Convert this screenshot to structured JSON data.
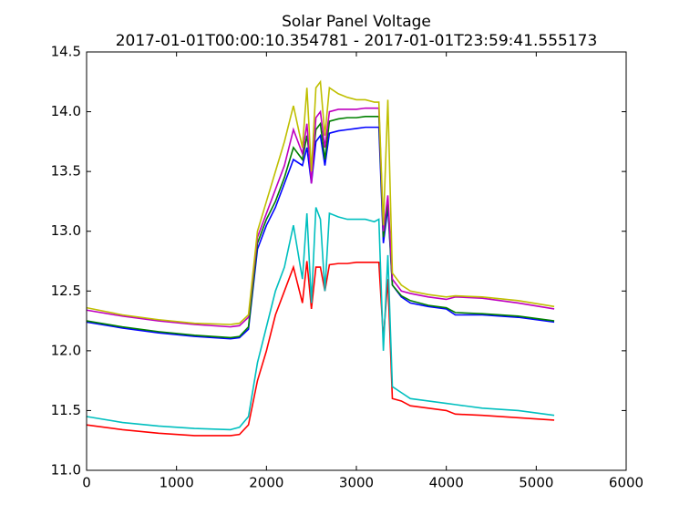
{
  "chart_data": {
    "type": "line",
    "title": "Solar Panel Voltage",
    "subtitle": "2017-01-01T00:00:10.354781 - 2017-01-01T23:59:41.555173",
    "x": [
      0,
      400,
      800,
      1200,
      1600,
      1700,
      1800,
      1900,
      2000,
      2100,
      2200,
      2300,
      2400,
      2450,
      2500,
      2550,
      2600,
      2650,
      2700,
      2800,
      2900,
      3000,
      3100,
      3200,
      3250,
      3300,
      3350,
      3400,
      3500,
      3600,
      3800,
      4000,
      4100,
      4400,
      4800,
      5200
    ],
    "series": [
      {
        "color": "#0000ff",
        "values": [
          12.24,
          12.19,
          12.15,
          12.12,
          12.1,
          12.11,
          12.18,
          12.85,
          13.05,
          13.2,
          13.4,
          13.6,
          13.55,
          13.7,
          13.4,
          13.75,
          13.8,
          13.55,
          13.82,
          13.84,
          13.85,
          13.86,
          13.87,
          13.87,
          13.87,
          12.9,
          13.2,
          12.55,
          12.45,
          12.4,
          12.37,
          12.35,
          12.3,
          12.3,
          12.28,
          12.24
        ]
      },
      {
        "color": "#008000",
        "values": [
          12.25,
          12.2,
          12.16,
          12.13,
          12.11,
          12.12,
          12.2,
          12.9,
          13.1,
          13.25,
          13.45,
          13.7,
          13.6,
          13.8,
          13.5,
          13.85,
          13.9,
          13.6,
          13.92,
          13.94,
          13.95,
          13.95,
          13.96,
          13.96,
          13.96,
          12.95,
          13.25,
          12.55,
          12.46,
          12.42,
          12.38,
          12.36,
          12.32,
          12.31,
          12.29,
          12.25
        ]
      },
      {
        "color": "#ff0000",
        "values": [
          11.38,
          11.34,
          11.31,
          11.29,
          11.29,
          11.3,
          11.38,
          11.75,
          12.0,
          12.3,
          12.5,
          12.7,
          12.4,
          12.75,
          12.35,
          12.7,
          12.7,
          12.5,
          12.72,
          12.73,
          12.73,
          12.74,
          12.74,
          12.74,
          12.74,
          12.1,
          12.6,
          11.6,
          11.58,
          11.54,
          11.52,
          11.5,
          11.47,
          11.46,
          11.44,
          11.42
        ]
      },
      {
        "color": "#00bfbf",
        "values": [
          11.45,
          11.4,
          11.37,
          11.35,
          11.34,
          11.36,
          11.45,
          11.9,
          12.2,
          12.5,
          12.7,
          13.05,
          12.6,
          13.15,
          12.4,
          13.2,
          13.1,
          12.5,
          13.15,
          13.12,
          13.1,
          13.1,
          13.1,
          13.08,
          13.1,
          12.0,
          12.8,
          11.7,
          11.65,
          11.6,
          11.58,
          11.56,
          11.55,
          11.52,
          11.5,
          11.46
        ]
      },
      {
        "color": "#bf00bf",
        "values": [
          12.34,
          12.29,
          12.25,
          12.22,
          12.2,
          12.21,
          12.28,
          12.95,
          13.15,
          13.35,
          13.55,
          13.85,
          13.65,
          13.9,
          13.4,
          13.95,
          14.0,
          13.7,
          14.0,
          14.02,
          14.02,
          14.02,
          14.03,
          14.03,
          14.03,
          13.0,
          13.3,
          12.6,
          12.5,
          12.48,
          12.45,
          12.43,
          12.45,
          12.44,
          12.4,
          12.35
        ]
      },
      {
        "color": "#bfbf00",
        "values": [
          12.36,
          12.3,
          12.26,
          12.23,
          12.22,
          12.23,
          12.3,
          13.0,
          13.25,
          13.5,
          13.75,
          14.05,
          13.7,
          14.2,
          13.5,
          14.2,
          14.25,
          13.8,
          14.2,
          14.15,
          14.12,
          14.1,
          14.1,
          14.08,
          14.08,
          13.05,
          14.1,
          12.65,
          12.55,
          12.5,
          12.47,
          12.45,
          12.46,
          12.45,
          12.42,
          12.37
        ]
      }
    ],
    "xlim": [
      0,
      6000
    ],
    "xticks": [
      0,
      1000,
      2000,
      3000,
      4000,
      5000,
      6000
    ],
    "ylim": [
      11.0,
      14.5
    ],
    "yticks": [
      {
        "value": 11.0,
        "label": "11.0"
      },
      11.5,
      {
        "value": 12.0,
        "label": "12.0"
      },
      12.5,
      {
        "value": 13.0,
        "label": "13.0"
      },
      13.5,
      {
        "value": 14.0,
        "label": "14.0"
      },
      14.5
    ],
    "grid": false
  }
}
